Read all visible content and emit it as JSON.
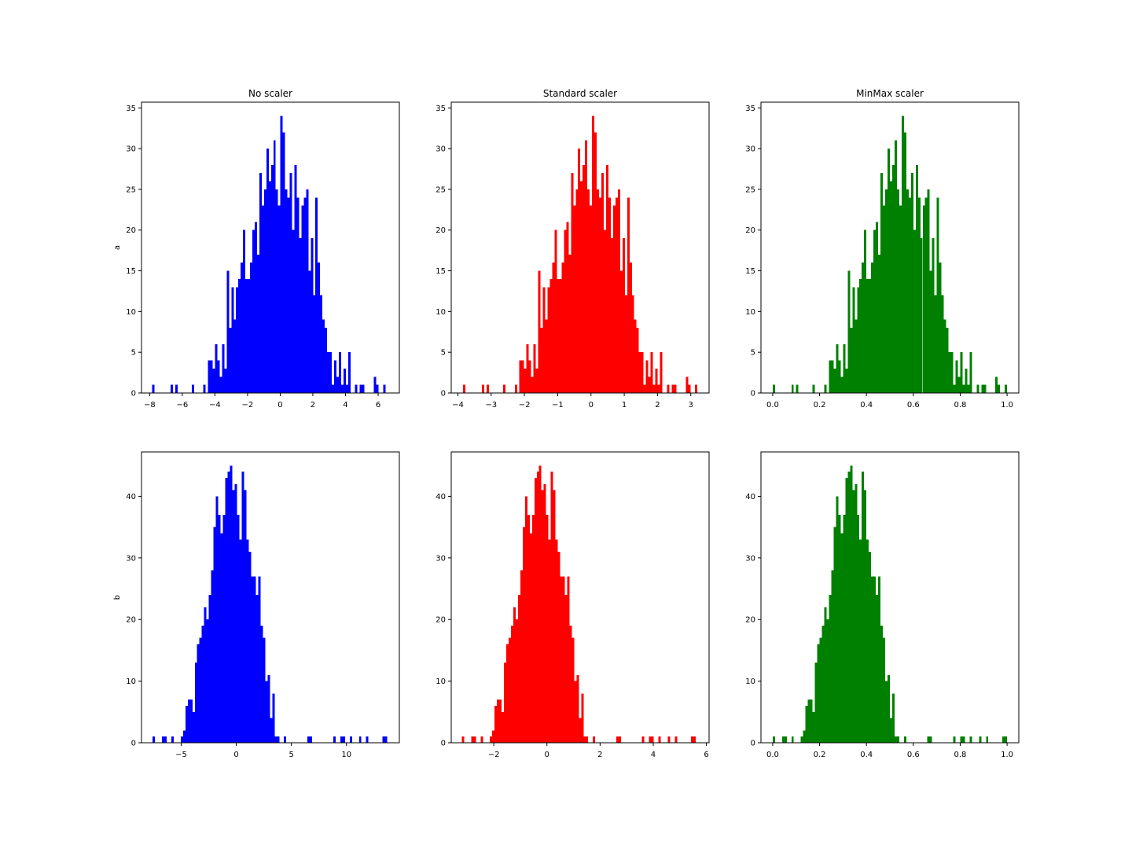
{
  "colors": {
    "blue": "#0000ff",
    "red": "#ff0000",
    "green": "#008000"
  },
  "column_titles": [
    "No scaler",
    "Standard scaler",
    "MinMax scaler"
  ],
  "row_labels": [
    "a",
    "b"
  ],
  "chart_data": [
    {
      "type": "bar",
      "title": "No scaler",
      "ylabel": "a",
      "xlabel": "",
      "color": "#0000ff",
      "xlim": [
        -8.5,
        7.3
      ],
      "ylim": [
        0,
        35.7
      ],
      "xticks": [
        -8,
        -6,
        -4,
        -2,
        0,
        2,
        4,
        6
      ],
      "xtick_labels": [
        "−8",
        "−6",
        "−4",
        "−2",
        "0",
        "2",
        "4",
        "6"
      ],
      "yticks": [
        0,
        5,
        10,
        15,
        20,
        25,
        30,
        35
      ],
      "ytick_labels": [
        "0",
        "5",
        "10",
        "15",
        "20",
        "25",
        "30",
        "35"
      ],
      "bin_start": -7.86,
      "bin_end": 6.45,
      "counts": [
        1,
        0,
        0,
        0,
        0,
        0,
        0,
        0,
        1,
        0,
        1,
        0,
        0,
        0,
        0,
        0,
        0,
        1,
        0,
        0,
        0,
        0,
        1,
        0,
        4,
        4,
        3,
        6,
        4,
        2,
        6,
        3,
        15,
        8,
        13,
        9,
        13,
        14,
        16,
        20,
        14,
        14,
        16,
        20,
        21,
        17,
        27,
        23,
        25,
        30,
        26,
        28,
        31,
        25,
        23,
        34,
        32,
        25,
        24,
        27,
        20,
        28,
        24,
        19,
        23,
        24,
        25,
        15,
        19,
        12,
        24,
        16,
        12,
        9,
        8,
        5,
        5,
        1,
        4,
        2,
        5,
        1,
        3,
        1,
        5,
        0,
        0,
        1,
        0,
        1,
        1,
        0,
        0,
        0,
        0,
        2,
        1,
        0,
        0,
        1
      ]
    },
    {
      "type": "bar",
      "title": "Standard scaler",
      "ylabel": "",
      "xlabel": "",
      "color": "#ff0000",
      "xlim": [
        -4.2,
        3.55
      ],
      "ylim": [
        0,
        35.7
      ],
      "xticks": [
        -4,
        -3,
        -2,
        -1,
        0,
        1,
        2,
        3
      ],
      "xtick_labels": [
        "−4",
        "−3",
        "−2",
        "−1",
        "0",
        "1",
        "2",
        "3"
      ],
      "yticks": [
        0,
        5,
        10,
        15,
        20,
        25,
        30,
        35
      ],
      "ytick_labels": [
        "0",
        "5",
        "10",
        "15",
        "20",
        "25",
        "30",
        "35"
      ],
      "bin_start": -3.84,
      "bin_end": 3.2,
      "counts": [
        1,
        0,
        0,
        0,
        0,
        0,
        0,
        0,
        1,
        0,
        1,
        0,
        0,
        0,
        0,
        0,
        0,
        1,
        0,
        0,
        0,
        0,
        1,
        0,
        4,
        4,
        3,
        6,
        4,
        2,
        6,
        3,
        15,
        8,
        13,
        9,
        13,
        14,
        16,
        20,
        14,
        14,
        16,
        20,
        21,
        17,
        27,
        23,
        25,
        30,
        26,
        28,
        31,
        25,
        23,
        34,
        32,
        25,
        24,
        27,
        20,
        28,
        24,
        19,
        23,
        24,
        25,
        15,
        19,
        12,
        24,
        16,
        12,
        9,
        8,
        5,
        5,
        1,
        4,
        2,
        5,
        1,
        3,
        1,
        5,
        0,
        0,
        1,
        0,
        1,
        1,
        0,
        0,
        0,
        0,
        2,
        1,
        0,
        0,
        1
      ]
    },
    {
      "type": "bar",
      "title": "MinMax scaler",
      "ylabel": "",
      "xlabel": "",
      "color": "#008000",
      "xlim": [
        -0.05,
        1.05
      ],
      "ylim": [
        0,
        35.7
      ],
      "xticks": [
        0.0,
        0.2,
        0.4,
        0.6,
        0.8,
        1.0
      ],
      "xtick_labels": [
        "0.0",
        "0.2",
        "0.4",
        "0.6",
        "0.8",
        "1.0"
      ],
      "yticks": [
        0,
        5,
        10,
        15,
        20,
        25,
        30,
        35
      ],
      "ytick_labels": [
        "0",
        "5",
        "10",
        "15",
        "20",
        "25",
        "30",
        "35"
      ],
      "bin_start": 0.0,
      "bin_end": 1.0,
      "counts": [
        1,
        0,
        0,
        0,
        0,
        0,
        0,
        0,
        1,
        0,
        1,
        0,
        0,
        0,
        0,
        0,
        0,
        1,
        0,
        0,
        0,
        0,
        1,
        0,
        4,
        4,
        3,
        6,
        4,
        2,
        6,
        3,
        15,
        8,
        13,
        9,
        13,
        14,
        16,
        20,
        14,
        14,
        16,
        20,
        21,
        17,
        27,
        23,
        25,
        30,
        26,
        28,
        31,
        25,
        23,
        34,
        32,
        25,
        24,
        27,
        20,
        28,
        24,
        19,
        23,
        24,
        25,
        15,
        19,
        12,
        24,
        16,
        12,
        9,
        8,
        5,
        5,
        1,
        4,
        2,
        5,
        1,
        3,
        1,
        5,
        0,
        0,
        1,
        0,
        1,
        1,
        0,
        0,
        0,
        0,
        2,
        1,
        0,
        0,
        1
      ]
    },
    {
      "type": "bar",
      "title": "",
      "ylabel": "b",
      "xlabel": "",
      "color": "#0000ff",
      "xlim": [
        -8.6,
        14.8
      ],
      "ylim": [
        0,
        47.2
      ],
      "xticks": [
        -5,
        0,
        5,
        10
      ],
      "xtick_labels": [
        "−5",
        "0",
        "5",
        "10"
      ],
      "yticks": [
        0,
        10,
        20,
        30,
        40
      ],
      "ytick_labels": [
        "0",
        "10",
        "20",
        "30",
        "40"
      ],
      "bin_start": -7.6,
      "bin_end": 13.7,
      "counts": [
        1,
        0,
        0,
        0,
        1,
        1,
        0,
        0,
        1,
        0,
        0,
        0,
        1,
        2,
        6,
        7,
        7,
        5,
        13,
        16,
        17,
        19,
        22,
        20,
        24,
        28,
        35,
        40,
        37,
        34,
        37,
        43,
        44,
        45,
        41,
        42,
        37,
        33,
        44,
        41,
        33,
        31,
        27,
        27,
        24,
        27,
        19,
        17,
        10,
        11,
        4,
        8,
        1,
        1,
        0,
        0,
        1,
        0,
        0,
        0,
        0,
        0,
        0,
        0,
        0,
        0,
        1,
        1,
        0,
        0,
        0,
        0,
        0,
        0,
        0,
        0,
        0,
        1,
        0,
        0,
        1,
        1,
        0,
        0,
        1,
        0,
        0,
        0,
        1,
        0,
        0,
        1,
        0,
        0,
        0,
        0,
        0,
        0,
        1,
        1
      ]
    },
    {
      "type": "bar",
      "title": "",
      "ylabel": "",
      "xlabel": "",
      "color": "#ff0000",
      "xlim": [
        -3.6,
        6.1
      ],
      "ylim": [
        0,
        47.2
      ],
      "xticks": [
        -2,
        0,
        2,
        4,
        6
      ],
      "xtick_labels": [
        "−2",
        "0",
        "2",
        "4",
        "6"
      ],
      "yticks": [
        0,
        10,
        20,
        30,
        40
      ],
      "ytick_labels": [
        "0",
        "10",
        "20",
        "30",
        "40"
      ],
      "bin_start": -3.2,
      "bin_end": 5.6,
      "counts": [
        1,
        0,
        0,
        0,
        1,
        1,
        0,
        0,
        1,
        0,
        0,
        0,
        1,
        2,
        6,
        7,
        7,
        5,
        13,
        16,
        17,
        19,
        22,
        20,
        24,
        28,
        35,
        40,
        37,
        34,
        37,
        43,
        44,
        45,
        41,
        42,
        37,
        33,
        44,
        41,
        33,
        31,
        27,
        27,
        24,
        27,
        19,
        17,
        10,
        11,
        4,
        8,
        1,
        1,
        0,
        0,
        1,
        0,
        0,
        0,
        0,
        0,
        0,
        0,
        0,
        0,
        1,
        1,
        0,
        0,
        0,
        0,
        0,
        0,
        0,
        0,
        0,
        1,
        0,
        0,
        1,
        1,
        0,
        0,
        1,
        0,
        0,
        0,
        1,
        0,
        0,
        1,
        0,
        0,
        0,
        0,
        0,
        0,
        1,
        1
      ]
    },
    {
      "type": "bar",
      "title": "",
      "ylabel": "",
      "xlabel": "",
      "color": "#008000",
      "xlim": [
        -0.05,
        1.05
      ],
      "ylim": [
        0,
        47.2
      ],
      "xticks": [
        0.0,
        0.2,
        0.4,
        0.6,
        0.8,
        1.0
      ],
      "xtick_labels": [
        "0.0",
        "0.2",
        "0.4",
        "0.6",
        "0.8",
        "1.0"
      ],
      "yticks": [
        0,
        10,
        20,
        30,
        40
      ],
      "ytick_labels": [
        "0",
        "10",
        "20",
        "30",
        "40"
      ],
      "bin_start": 0.0,
      "bin_end": 1.0,
      "counts": [
        1,
        0,
        0,
        0,
        1,
        1,
        0,
        0,
        1,
        0,
        0,
        0,
        1,
        2,
        6,
        7,
        7,
        5,
        13,
        16,
        17,
        19,
        22,
        20,
        24,
        28,
        35,
        40,
        37,
        34,
        37,
        43,
        44,
        45,
        41,
        42,
        37,
        33,
        44,
        41,
        33,
        31,
        27,
        27,
        24,
        27,
        19,
        17,
        10,
        11,
        4,
        8,
        1,
        1,
        0,
        0,
        1,
        0,
        0,
        0,
        0,
        0,
        0,
        0,
        0,
        0,
        1,
        1,
        0,
        0,
        0,
        0,
        0,
        0,
        0,
        0,
        0,
        1,
        0,
        0,
        1,
        1,
        0,
        0,
        1,
        0,
        0,
        0,
        1,
        0,
        0,
        1,
        0,
        0,
        0,
        0,
        0,
        0,
        1,
        1
      ]
    }
  ]
}
